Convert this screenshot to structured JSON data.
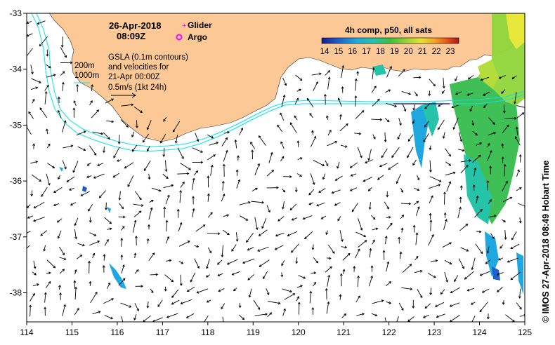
{
  "map": {
    "date_line": "26-Apr-2018",
    "time_line": "08:09Z",
    "legend_glider": "Glider",
    "legend_argo": "Argo",
    "contour_200": "200m",
    "contour_1000": "1000m",
    "gsla_line1": "GSLA (0.1m contours)",
    "gsla_line2": "and velocities for",
    "gsla_line3": "21-Apr 00:00Z",
    "gsla_line4": "0.5m/s (1kt 24h)",
    "colorbar_title": "4h comp, p50, all sats",
    "colorbar_ticks": [
      "14",
      "15",
      "16",
      "17",
      "18",
      "19",
      "20",
      "21",
      "22",
      "23"
    ],
    "credit": "© IMOS 27-Apr-2018 08:49 Hobart Time",
    "x_ticks": [
      "114",
      "115",
      "116",
      "117",
      "118",
      "119",
      "120",
      "121",
      "122",
      "123",
      "124",
      "125"
    ],
    "y_ticks": [
      "-33",
      "-34",
      "-35",
      "-36",
      "-37",
      "-38"
    ],
    "colors": {
      "land": "#fbc896",
      "contour": "#00e5ee",
      "glider": "#ff00ff",
      "argo": "#ff00ff"
    }
  }
}
